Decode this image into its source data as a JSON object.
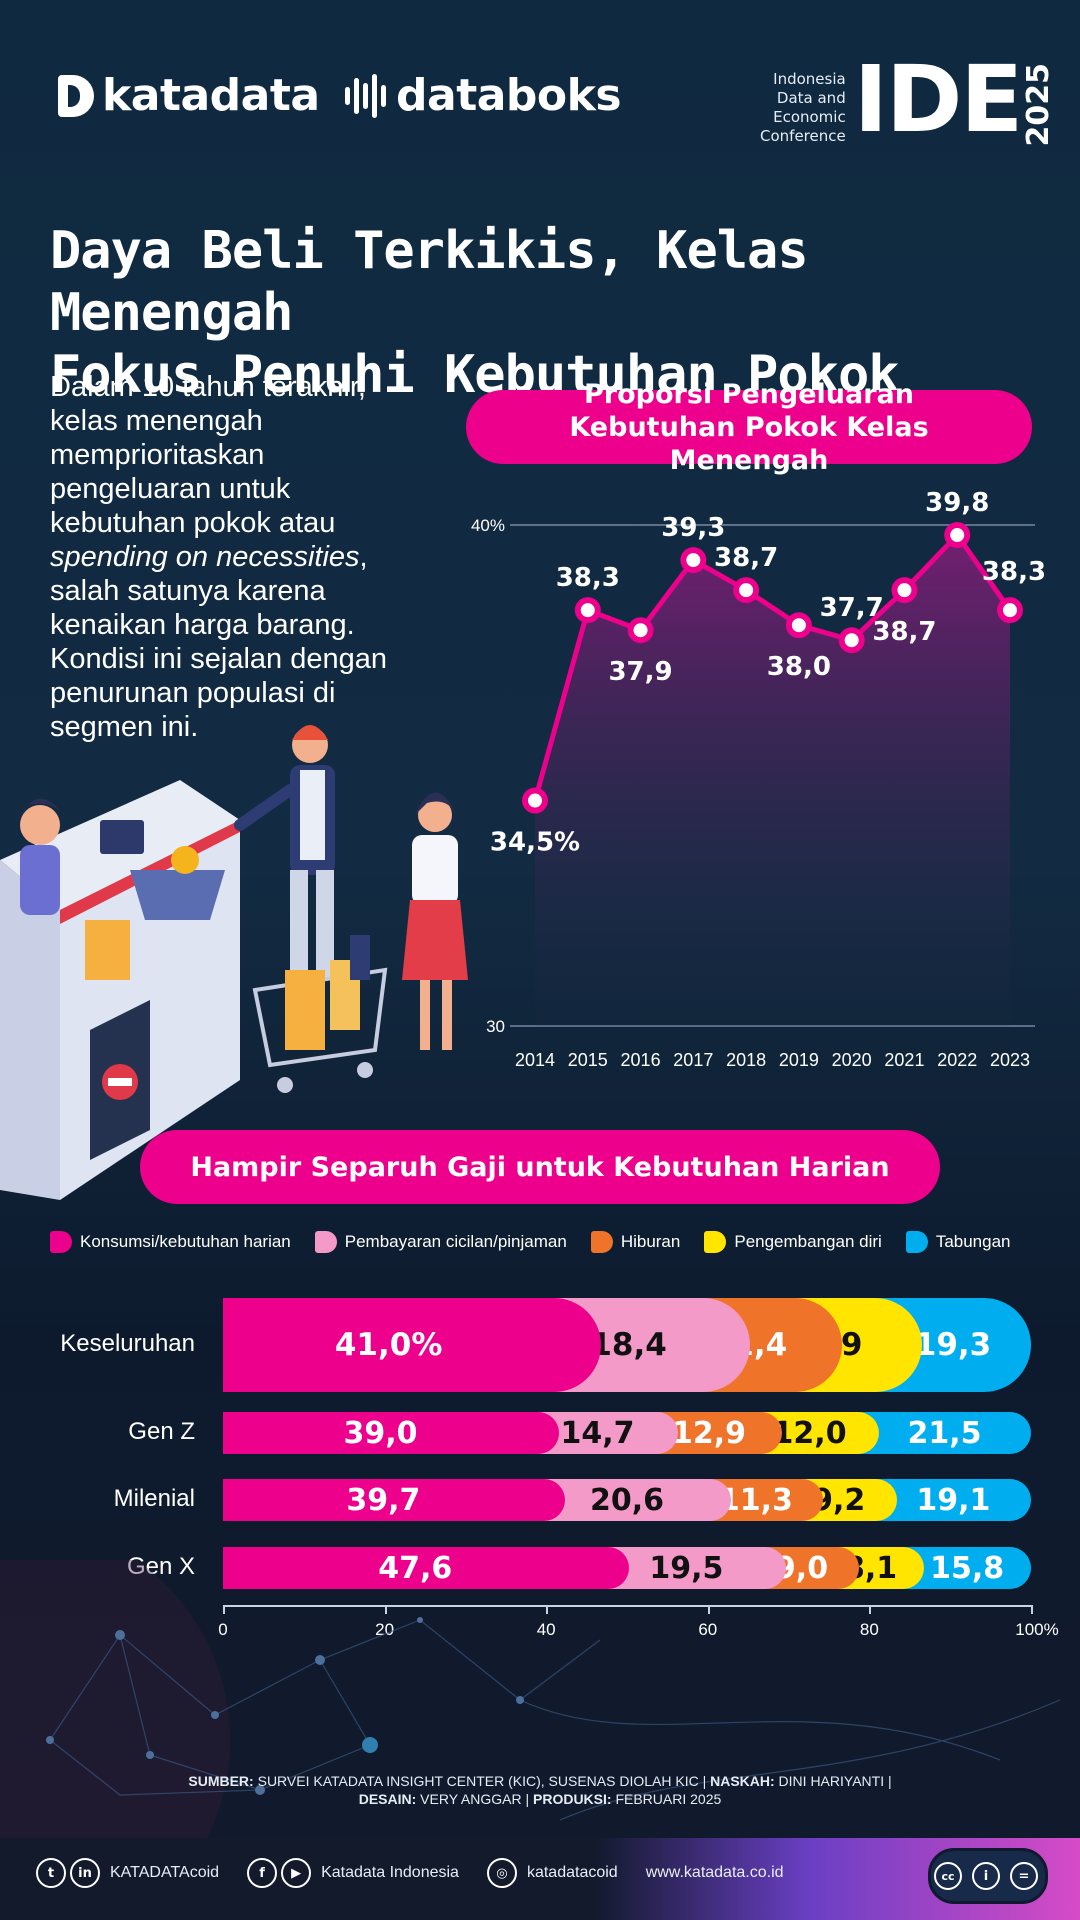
{
  "brand": {
    "katadata": "katadata",
    "databoks": "databoks",
    "ide_lines": [
      "Indonesia",
      "Data and",
      "Economic",
      "Conference"
    ],
    "ide_word": "IDE",
    "ide_year": "2025"
  },
  "title_line1": "Daya Beli Terkikis, Kelas Menengah",
  "title_line2": "Fokus Penuhi Kebutuhan Pokok",
  "intro": {
    "part1": "Dalam 10 tahun terakhir, kelas menengah memprioritaskan pengeluaran untuk kebutuhan pokok atau ",
    "italic": "spending on necessities",
    "part2": ", salah satunya karena kenaikan harga barang. Kondisi ini sejalan dengan penurunan populasi di segmen ini."
  },
  "chart_data": [
    {
      "type": "area",
      "title": "Proporsi Pengeluaran Kebutuhan Pokok Kelas Menengah",
      "x": [
        "2014",
        "2015",
        "2016",
        "2017",
        "2018",
        "2019",
        "2020",
        "2021",
        "2022",
        "2023"
      ],
      "values": [
        34.5,
        38.3,
        37.9,
        39.3,
        38.7,
        38.0,
        37.7,
        38.7,
        39.8,
        38.3
      ],
      "point_labels": [
        "34,5%",
        "38,3",
        "37,9",
        "39,3",
        "38,7",
        "38,0",
        "37,7",
        "38,7",
        "39,8",
        "38,3"
      ],
      "ylim": [
        30,
        40
      ],
      "y_tick_labels": [
        "30",
        "40%"
      ],
      "grid": "horizontal at 30 and 40",
      "color": "#ec008c"
    },
    {
      "type": "bar",
      "orientation": "horizontal-stacked",
      "title": "Hampir Separuh Gaji untuk Kebutuhan Harian",
      "categories": [
        "Keseluruhan",
        "Gen Z",
        "Milenial",
        "Gen X"
      ],
      "series": [
        {
          "name": "Konsumsi/kebutuhan harian",
          "color": "#ec008c",
          "values": [
            41.0,
            39.0,
            39.7,
            47.6
          ],
          "labels": [
            "41,0%",
            "39,0",
            "39,7",
            "47,6"
          ]
        },
        {
          "name": "Pembayaran cicilan/pinjaman",
          "color": "#f49ac8",
          "values": [
            18.4,
            14.7,
            20.6,
            19.5
          ],
          "labels": [
            "18,4",
            "14,7",
            "20,6",
            "19,5"
          ]
        },
        {
          "name": "Hiburan",
          "color": "#f0732a",
          "values": [
            11.4,
            12.9,
            11.3,
            9.0
          ],
          "labels": [
            "11,4",
            "12,9",
            "11,3",
            "9,0"
          ]
        },
        {
          "name": "Pengembangan diri",
          "color": "#ffe500",
          "values": [
            9.9,
            12.0,
            9.2,
            8.1
          ],
          "labels": [
            "9,9",
            "12,0",
            "9,2",
            "8,1"
          ]
        },
        {
          "name": "Tabungan",
          "color": "#00aeef",
          "values": [
            19.3,
            21.5,
            19.1,
            15.8
          ],
          "labels": [
            "19,3",
            "21,5",
            "19,1",
            "15,8"
          ]
        }
      ],
      "xlim": [
        0,
        100
      ],
      "x_tick_labels": [
        "0",
        "20",
        "40",
        "60",
        "80",
        "100%"
      ],
      "legend": "top"
    }
  ],
  "source": {
    "sumber_label": "SUMBER:",
    "sumber_text": " SURVEI KATADATA INSIGHT CENTER (KIC), SUSENAS DIOLAH KIC | ",
    "naskah_label": "NASKAH:",
    "naskah_text": " DINI HARIYANTI |",
    "desain_label": "DESAIN:",
    "desain_text": " VERY ANGGAR | ",
    "produksi_label": "PRODUKSI:",
    "produksi_text": " FEBRUARI 2025"
  },
  "footer": {
    "handle1": "KATADATAcoid",
    "handle2": "Katadata Indonesia",
    "handle3": "katadatacoid",
    "website": "www.katadata.co.id",
    "cc_symbols": [
      "cc",
      "i",
      "="
    ]
  }
}
